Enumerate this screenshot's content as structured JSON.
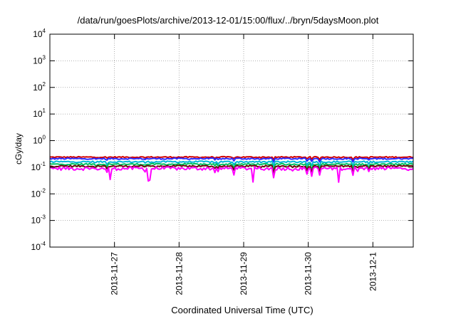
{
  "chart_data": {
    "type": "line",
    "title": "/data/run/goesPlots/archive/2013-12-01/15:00/flux/../bryn/5daysMoon.plot",
    "xlabel": "Coordinated Universal Time (UTC)",
    "ylabel": "cGy/day",
    "yscale": "log",
    "ylim": [
      0.0001,
      10000
    ],
    "xlim": [
      "2013-11-26 00:00",
      "2013-12-01 15:00"
    ],
    "y_ticks": [
      {
        "base": "10",
        "exp": "-4"
      },
      {
        "base": "10",
        "exp": "-3"
      },
      {
        "base": "10",
        "exp": "-2"
      },
      {
        "base": "10",
        "exp": "-1"
      },
      {
        "base": "10",
        "exp": "0"
      },
      {
        "base": "10",
        "exp": "1"
      },
      {
        "base": "10",
        "exp": "2"
      },
      {
        "base": "10",
        "exp": "3"
      },
      {
        "base": "10",
        "exp": "4"
      }
    ],
    "x_ticks": [
      "2013-11-27",
      "2013-11-28",
      "2013-11-29",
      "2013-11-30",
      "2013-12-1"
    ],
    "grid": true,
    "legend": "none",
    "series": [
      {
        "color": "#d00000",
        "baseline": 0.24,
        "spread": 0.1
      },
      {
        "color": "#2a2aff",
        "baseline": 0.21,
        "spread": 0.12
      },
      {
        "color": "#00b8d8",
        "baseline": 0.16,
        "spread": 0.14
      },
      {
        "color": "#00c060",
        "baseline": 0.13,
        "spread": 0.14
      },
      {
        "color": "#6b0a0a",
        "baseline": 0.11,
        "spread": 0.15
      },
      {
        "color": "#ff00ff",
        "baseline": 0.09,
        "spread": 0.3
      }
    ]
  }
}
